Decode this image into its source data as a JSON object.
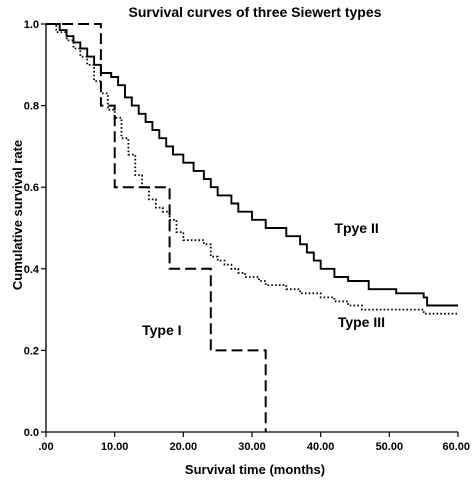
{
  "chart_data": {
    "type": "line",
    "step": true,
    "title": "Survival curves of three Siewert types",
    "xlabel": "Survival time (months)",
    "ylabel": "Cumulative survival rate",
    "xlim": [
      0,
      60
    ],
    "ylim": [
      0,
      1.0
    ],
    "x_ticks": [
      0,
      10,
      20,
      30,
      40,
      50,
      60
    ],
    "x_tick_labels": [
      ".00",
      "10.00",
      "20.00",
      "30.00",
      "40.00",
      "50.00",
      "60.00"
    ],
    "y_ticks": [
      0,
      0.2,
      0.4,
      0.6,
      0.8,
      1.0
    ],
    "y_tick_labels": [
      "0.0",
      "0.2",
      "0.4",
      "0.6",
      "0.8",
      "1.0"
    ],
    "grid": false,
    "legend": "none",
    "series": [
      {
        "name": "Tpye II",
        "style": "solid",
        "label_at": [
          42,
          0.5
        ],
        "points": [
          [
            0,
            1.0
          ],
          [
            2,
            0.985
          ],
          [
            3,
            0.97
          ],
          [
            4,
            0.955
          ],
          [
            5,
            0.94
          ],
          [
            6,
            0.92
          ],
          [
            7,
            0.9
          ],
          [
            8,
            0.88
          ],
          [
            9.5,
            0.87
          ],
          [
            10.5,
            0.85
          ],
          [
            11.5,
            0.82
          ],
          [
            12.5,
            0.8
          ],
          [
            13.5,
            0.78
          ],
          [
            14.5,
            0.76
          ],
          [
            15.5,
            0.74
          ],
          [
            16.5,
            0.72
          ],
          [
            17.5,
            0.7
          ],
          [
            18.5,
            0.68
          ],
          [
            20,
            0.66
          ],
          [
            21.5,
            0.64
          ],
          [
            23,
            0.62
          ],
          [
            24,
            0.6
          ],
          [
            25,
            0.58
          ],
          [
            27,
            0.56
          ],
          [
            28,
            0.54
          ],
          [
            30,
            0.52
          ],
          [
            32,
            0.5
          ],
          [
            35,
            0.48
          ],
          [
            37,
            0.46
          ],
          [
            38,
            0.44
          ],
          [
            39,
            0.42
          ],
          [
            40,
            0.4
          ],
          [
            42,
            0.38
          ],
          [
            44,
            0.37
          ],
          [
            47,
            0.35
          ],
          [
            49,
            0.35
          ],
          [
            51,
            0.34
          ],
          [
            55,
            0.33
          ],
          [
            55.5,
            0.31
          ],
          [
            60,
            0.31
          ]
        ]
      },
      {
        "name": "Type III",
        "style": "dotted",
        "label_at": [
          42.5,
          0.27
        ],
        "points": [
          [
            0,
            1.0
          ],
          [
            1.5,
            0.98
          ],
          [
            3,
            0.96
          ],
          [
            4,
            0.94
          ],
          [
            5,
            0.92
          ],
          [
            6,
            0.9
          ],
          [
            7,
            0.86
          ],
          [
            8,
            0.83
          ],
          [
            9,
            0.79
          ],
          [
            10,
            0.77
          ],
          [
            11,
            0.72
          ],
          [
            12,
            0.68
          ],
          [
            13,
            0.63
          ],
          [
            14,
            0.6
          ],
          [
            15,
            0.57
          ],
          [
            16,
            0.55
          ],
          [
            17,
            0.54
          ],
          [
            18,
            0.52
          ],
          [
            19,
            0.49
          ],
          [
            20,
            0.47
          ],
          [
            23,
            0.46
          ],
          [
            24,
            0.43
          ],
          [
            25,
            0.42
          ],
          [
            26,
            0.41
          ],
          [
            27,
            0.4
          ],
          [
            28,
            0.39
          ],
          [
            29,
            0.38
          ],
          [
            31,
            0.37
          ],
          [
            32,
            0.36
          ],
          [
            35,
            0.35
          ],
          [
            37,
            0.34
          ],
          [
            40,
            0.33
          ],
          [
            42,
            0.32
          ],
          [
            44,
            0.31
          ],
          [
            46,
            0.3
          ],
          [
            54,
            0.3
          ],
          [
            55,
            0.29
          ],
          [
            60,
            0.29
          ]
        ]
      },
      {
        "name": "Type I",
        "style": "dashed",
        "label_at": [
          14,
          0.25
        ],
        "points": [
          [
            0,
            1.0
          ],
          [
            8,
            1.0
          ],
          [
            8,
            0.8
          ],
          [
            10,
            0.8
          ],
          [
            10,
            0.6
          ],
          [
            18,
            0.6
          ],
          [
            18,
            0.4
          ],
          [
            24,
            0.4
          ],
          [
            24,
            0.2
          ],
          [
            32,
            0.2
          ],
          [
            32,
            0.0
          ]
        ]
      }
    ]
  }
}
